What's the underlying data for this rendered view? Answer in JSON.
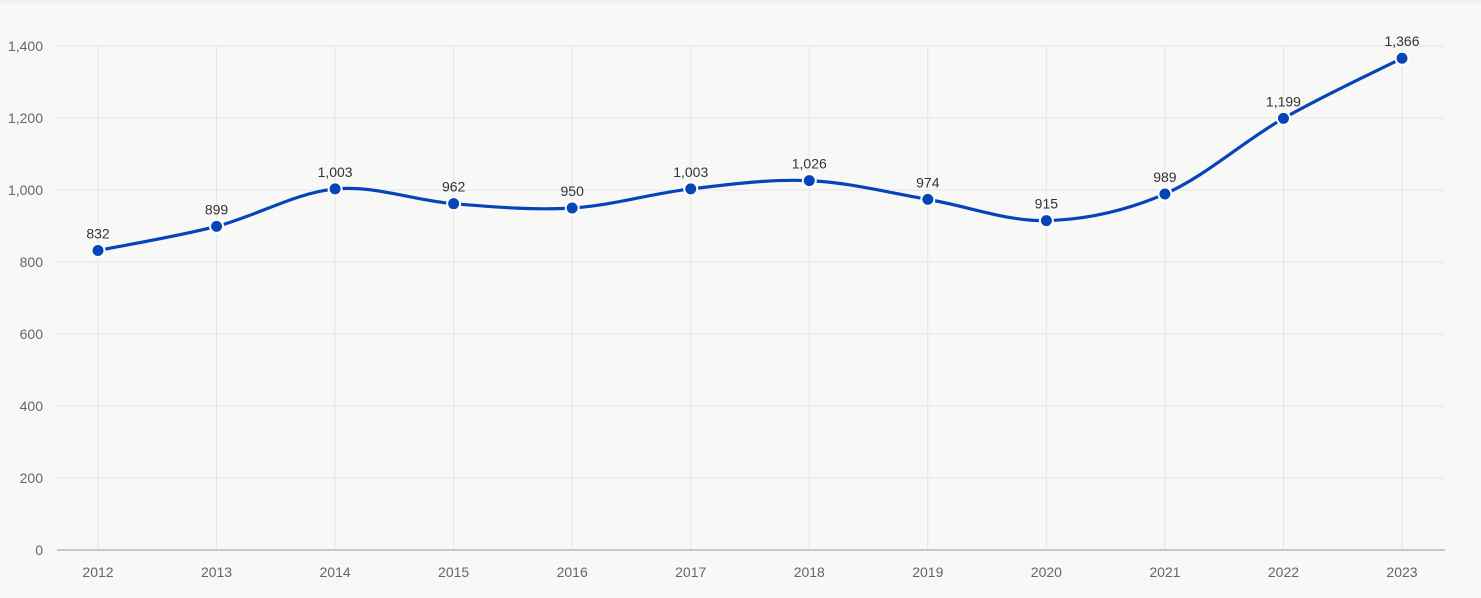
{
  "chart_data": {
    "type": "line",
    "categories": [
      "2012",
      "2013",
      "2014",
      "2015",
      "2016",
      "2017",
      "2018",
      "2019",
      "2020",
      "2021",
      "2022",
      "2023"
    ],
    "series": [
      {
        "values": [
          832,
          899,
          1003,
          962,
          950,
          1003,
          1026,
          974,
          915,
          989,
          1199,
          1366
        ],
        "data_labels": [
          "832",
          "899",
          "1,003",
          "962",
          "950",
          "1,003",
          "1,026",
          "974",
          "915",
          "989",
          "1,199",
          "1,366"
        ]
      }
    ],
    "y_ticks": [
      0,
      200,
      400,
      600,
      800,
      1000,
      1200,
      1400
    ],
    "y_tick_labels": [
      "0",
      "200",
      "400",
      "600",
      "800",
      "1,000",
      "1,200",
      "1,400"
    ],
    "ylim": [
      0,
      1400
    ],
    "grid": true,
    "legend": "none",
    "colors": {
      "series": "#0645b8",
      "grid": "#e3e5ea",
      "axis": "#999999",
      "background": "#f8f8f6"
    }
  }
}
